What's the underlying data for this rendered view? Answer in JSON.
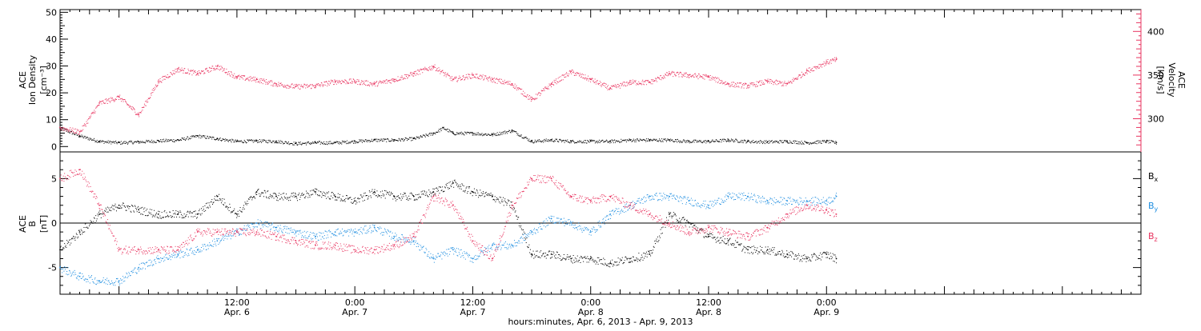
{
  "colors": {
    "black": "#000000",
    "pink": "#e8335f",
    "blue": "#1f8ee0",
    "axis_pink": "#e8335f"
  },
  "xaxis": {
    "title": "hours:minutes, Apr. 6, 2013 - Apr. 9, 2013",
    "range_hours": [
      -6,
      104
    ],
    "major_labels": [
      {
        "h": 12,
        "time": "12:00",
        "date": "Apr. 6"
      },
      {
        "h": 24,
        "time": "0:00",
        "date": "Apr. 7"
      },
      {
        "h": 36,
        "time": "12:00",
        "date": "Apr. 7"
      },
      {
        "h": 48,
        "time": "0:00",
        "date": "Apr. 8"
      },
      {
        "h": 60,
        "time": "12:00",
        "date": "Apr. 8"
      },
      {
        "h": 72,
        "time": "0:00",
        "date": "Apr. 9"
      }
    ]
  },
  "panel_top": {
    "left_axis": {
      "label_lines": [
        "ACE",
        "Ion Density",
        "[cm⁻³]"
      ],
      "ylim": [
        -2,
        51
      ],
      "ticks": [
        0,
        10,
        20,
        30,
        40,
        50
      ]
    },
    "right_axis": {
      "label_lines": [
        "ACE",
        "Velocity",
        "[km/s]"
      ],
      "ylim": [
        262,
        425
      ],
      "ticks": [
        300,
        350,
        400
      ]
    }
  },
  "panel_bottom": {
    "left_axis": {
      "label_lines": [
        "ACE",
        "B",
        "[nT]"
      ],
      "ylim": [
        -8,
        8
      ],
      "ticks": [
        -5,
        0,
        5
      ]
    },
    "legend": [
      {
        "label": "B",
        "sub": "x",
        "color": "#000000"
      },
      {
        "label": "B",
        "sub": "y",
        "color": "#1f8ee0"
      },
      {
        "label": "B",
        "sub": "z",
        "color": "#e8335f"
      }
    ]
  },
  "chart_data": [
    {
      "type": "scatter",
      "title": "",
      "xlabel": "hours:minutes, Apr. 6, 2013 - Apr. 9, 2013",
      "ylabel": "ACE Ion Density [cm⁻³]",
      "y2label": "ACE Velocity [km/s]",
      "ylim": [
        -2,
        51
      ],
      "y2lim": [
        262,
        425
      ],
      "series": [
        {
          "name": "Ion Density",
          "axis": "left",
          "color": "#000000",
          "x": [
            -6,
            -4,
            -2,
            0,
            2,
            4,
            6,
            8,
            10,
            12,
            14,
            16,
            18,
            20,
            22,
            24,
            26,
            28,
            30,
            32,
            33,
            34,
            36,
            38,
            40,
            42,
            44,
            46,
            48,
            50,
            52,
            54,
            56,
            58,
            60,
            62,
            64,
            66,
            68,
            70,
            72,
            73
          ],
          "values": [
            7,
            4,
            2,
            1.5,
            1.8,
            2.2,
            2.5,
            4,
            3,
            2,
            2.2,
            2,
            1.2,
            1.5,
            1.5,
            2,
            2.5,
            2.5,
            3,
            5,
            7,
            5,
            5,
            4.5,
            6,
            2,
            2.5,
            2,
            2,
            2,
            2.5,
            2.5,
            2.5,
            2,
            2,
            2.5,
            2,
            1.8,
            2,
            1.5,
            2,
            1.5
          ]
        },
        {
          "name": "Velocity",
          "axis": "right",
          "color": "#e8335f",
          "x": [
            -6,
            -4,
            -2,
            0,
            2,
            4,
            6,
            8,
            10,
            12,
            14,
            16,
            18,
            20,
            22,
            24,
            26,
            28,
            30,
            32,
            34,
            36,
            38,
            40,
            42,
            44,
            46,
            48,
            50,
            52,
            54,
            56,
            58,
            60,
            62,
            64,
            66,
            68,
            70,
            72,
            73
          ],
          "values": [
            290,
            285,
            318,
            325,
            305,
            343,
            357,
            352,
            360,
            348,
            345,
            340,
            337,
            338,
            343,
            343,
            340,
            345,
            352,
            360,
            345,
            350,
            345,
            340,
            322,
            340,
            354,
            345,
            335,
            342,
            342,
            352,
            350,
            348,
            340,
            338,
            343,
            340,
            355,
            365,
            368
          ]
        }
      ]
    },
    {
      "type": "scatter",
      "title": "",
      "xlabel": "hours:minutes, Apr. 6, 2013 - Apr. 9, 2013",
      "ylabel": "ACE B [nT]",
      "ylim": [
        -8,
        8
      ],
      "series": [
        {
          "name": "Bx",
          "color": "#000000",
          "x": [
            -6,
            -4,
            -2,
            0,
            2,
            4,
            6,
            8,
            10,
            12,
            14,
            16,
            18,
            20,
            22,
            24,
            26,
            28,
            30,
            32,
            34,
            36,
            38,
            40,
            42,
            44,
            46,
            48,
            50,
            52,
            54,
            56,
            58,
            60,
            62,
            64,
            66,
            68,
            70,
            72,
            73
          ],
          "values": [
            -3,
            -1,
            1,
            2,
            1.5,
            1,
            1,
            1,
            3,
            1,
            3.5,
            3,
            3,
            3.5,
            3,
            2.5,
            3.5,
            3,
            3,
            3.5,
            4.5,
            3.5,
            3,
            2,
            -3.5,
            -3.5,
            -4,
            -4,
            -4.5,
            -4,
            -3.5,
            1,
            0,
            -1.5,
            -2,
            -3,
            -3,
            -3.5,
            -4,
            -3.5,
            -4
          ]
        },
        {
          "name": "By",
          "color": "#1f8ee0",
          "x": [
            -6,
            -4,
            -2,
            0,
            2,
            4,
            6,
            8,
            10,
            12,
            14,
            16,
            18,
            20,
            22,
            24,
            26,
            28,
            30,
            32,
            34,
            36,
            38,
            40,
            42,
            44,
            46,
            48,
            50,
            52,
            54,
            56,
            58,
            60,
            62,
            64,
            66,
            68,
            70,
            72,
            73
          ],
          "values": [
            -5,
            -6,
            -6.5,
            -6.5,
            -5,
            -4,
            -3.5,
            -3,
            -2,
            -1,
            0,
            -0.5,
            -1,
            -1.5,
            -1,
            -1,
            -0.5,
            -1.5,
            -2,
            -4,
            -3,
            -4,
            -2.5,
            -2.5,
            -1,
            0.5,
            0,
            -1,
            1,
            2,
            3,
            3,
            2.5,
            2,
            3,
            3,
            2.5,
            2.5,
            2.5,
            2.5,
            3
          ]
        },
        {
          "name": "Bz",
          "color": "#e8335f",
          "x": [
            -6,
            -4,
            -2,
            0,
            2,
            4,
            6,
            8,
            10,
            12,
            14,
            16,
            18,
            20,
            22,
            24,
            26,
            28,
            30,
            32,
            34,
            36,
            38,
            40,
            42,
            44,
            46,
            48,
            50,
            52,
            54,
            56,
            58,
            60,
            62,
            64,
            66,
            68,
            70,
            72,
            73
          ],
          "values": [
            5,
            6,
            2,
            -3,
            -3,
            -3,
            -3,
            -1,
            -1,
            -1,
            -1,
            -1.5,
            -2,
            -2.5,
            -2.5,
            -3,
            -3,
            -2.5,
            -1.5,
            3,
            2,
            -2,
            -4,
            2,
            5,
            5,
            3,
            2.5,
            3,
            2,
            1,
            0,
            -1,
            -0.5,
            -1,
            -1.5,
            -0.5,
            1,
            2,
            1.5,
            1
          ]
        }
      ]
    }
  ]
}
